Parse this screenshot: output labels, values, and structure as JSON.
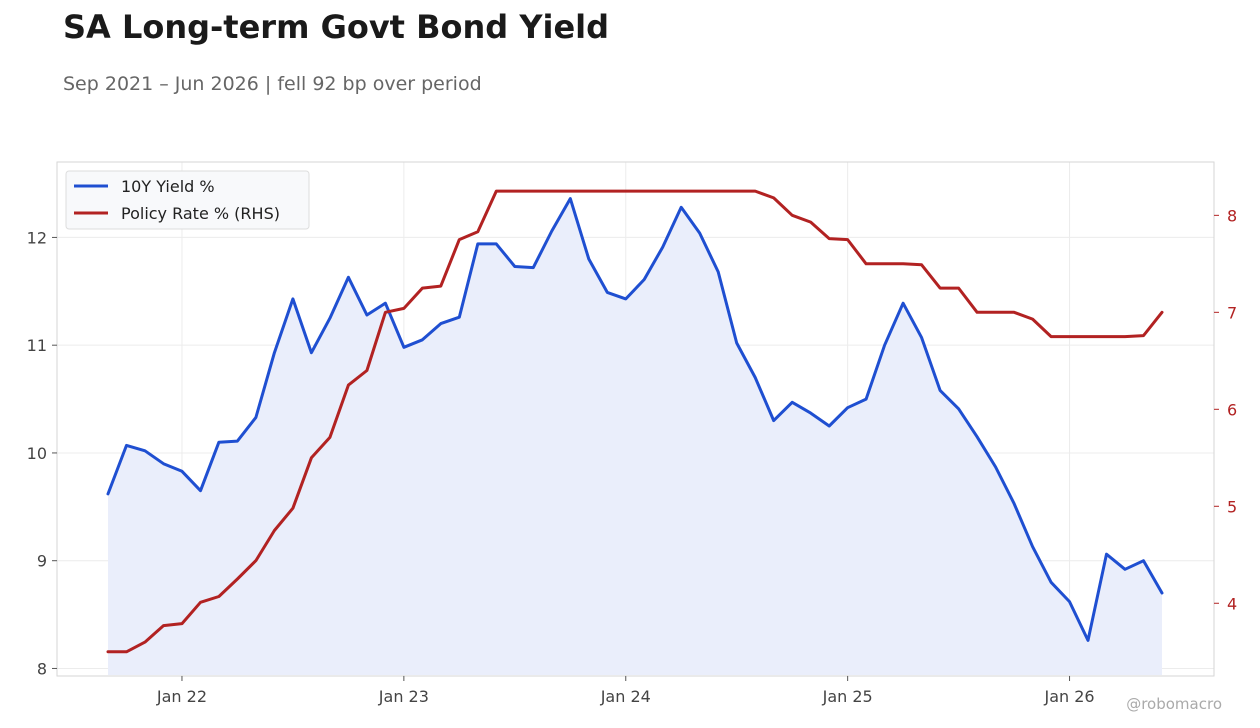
{
  "header": {
    "title": "SA Long-term Govt Bond Yield",
    "subtitle": "Sep 2021 – Jun 2026 | fell 92 bp over period"
  },
  "watermark": "@robomacro",
  "chart_data": {
    "type": "line",
    "title": "SA Long-term Govt Bond Yield",
    "subtitle": "Sep 2021 – Jun 2026 | fell 92 bp over period",
    "x_start": "2021-09",
    "x_end": "2026-06",
    "x_tick_labels": [
      "Jan 22",
      "Jan 23",
      "Jan 24",
      "Jan 25",
      "Jan 26"
    ],
    "x_ticks": [
      "2022-01",
      "2023-01",
      "2024-01",
      "2025-01",
      "2026-01"
    ],
    "grid": true,
    "legend_position": "top-left",
    "y_left": {
      "ticks": [
        8,
        9,
        10,
        11,
        12
      ],
      "range": [
        7.93,
        12.7
      ]
    },
    "y_right": {
      "ticks": [
        4,
        5,
        6,
        7,
        8
      ],
      "range": [
        3.25,
        8.55
      ],
      "color": "#b22222"
    },
    "series": [
      {
        "name": "10Y Yield %",
        "axis": "left",
        "color": "#1f4fd1",
        "fill": "#eaeefb",
        "x": [
          "2021-09",
          "2021-10",
          "2021-11",
          "2021-12",
          "2022-01",
          "2022-02",
          "2022-03",
          "2022-04",
          "2022-05",
          "2022-06",
          "2022-07",
          "2022-08",
          "2022-09",
          "2022-10",
          "2022-11",
          "2022-12",
          "2023-01",
          "2023-02",
          "2023-03",
          "2023-04",
          "2023-05",
          "2023-06",
          "2023-07",
          "2023-08",
          "2023-09",
          "2023-10",
          "2023-11",
          "2023-12",
          "2024-01",
          "2024-02",
          "2024-03",
          "2024-04",
          "2024-05",
          "2024-06",
          "2024-07",
          "2024-08",
          "2024-09",
          "2024-10",
          "2024-11",
          "2024-12",
          "2025-01",
          "2025-02",
          "2025-03",
          "2025-04",
          "2025-05",
          "2025-06",
          "2025-07",
          "2025-08",
          "2025-09",
          "2025-10",
          "2025-11",
          "2025-12",
          "2026-01",
          "2026-02",
          "2026-03",
          "2026-04",
          "2026-05",
          "2026-06"
        ],
        "values": [
          9.62,
          10.07,
          10.02,
          9.9,
          9.83,
          9.65,
          10.1,
          10.11,
          10.33,
          10.93,
          11.43,
          10.93,
          11.25,
          11.63,
          11.28,
          11.39,
          10.98,
          11.05,
          11.2,
          11.26,
          11.94,
          11.94,
          11.73,
          11.72,
          12.06,
          12.36,
          11.8,
          11.49,
          11.43,
          11.61,
          11.91,
          12.28,
          12.04,
          11.68,
          11.02,
          10.7,
          10.3,
          10.47,
          10.37,
          10.25,
          10.42,
          10.5,
          11.0,
          11.39,
          11.07,
          10.58,
          10.41,
          10.15,
          9.87,
          9.53,
          9.13,
          8.8,
          8.62,
          8.26,
          9.06,
          8.92,
          9.0,
          8.7
        ]
      },
      {
        "name": "Policy Rate % (RHS)",
        "axis": "right",
        "color": "#b22222",
        "x": [
          "2021-09",
          "2021-10",
          "2021-11",
          "2021-12",
          "2022-01",
          "2022-02",
          "2022-03",
          "2022-04",
          "2022-05",
          "2022-06",
          "2022-07",
          "2022-08",
          "2022-09",
          "2022-10",
          "2022-11",
          "2022-12",
          "2023-01",
          "2023-02",
          "2023-03",
          "2023-04",
          "2023-05",
          "2023-06",
          "2023-07",
          "2023-08",
          "2023-09",
          "2023-10",
          "2023-11",
          "2023-12",
          "2024-01",
          "2024-02",
          "2024-03",
          "2024-04",
          "2024-05",
          "2024-06",
          "2024-07",
          "2024-08",
          "2024-09",
          "2024-10",
          "2024-11",
          "2024-12",
          "2025-01",
          "2025-02",
          "2025-03",
          "2025-04",
          "2025-05",
          "2025-06",
          "2025-07",
          "2025-08",
          "2025-09",
          "2025-10",
          "2025-11",
          "2025-12",
          "2026-01",
          "2026-02",
          "2026-03",
          "2026-04",
          "2026-05",
          "2026-06"
        ],
        "values": [
          3.5,
          3.5,
          3.6,
          3.77,
          3.79,
          4.01,
          4.07,
          4.25,
          4.44,
          4.75,
          4.98,
          5.5,
          5.71,
          6.25,
          6.4,
          7.0,
          7.04,
          7.25,
          7.27,
          7.75,
          7.83,
          8.25,
          8.25,
          8.25,
          8.25,
          8.25,
          8.25,
          8.25,
          8.25,
          8.25,
          8.25,
          8.25,
          8.25,
          8.25,
          8.25,
          8.25,
          8.18,
          8.0,
          7.93,
          7.76,
          7.75,
          7.5,
          7.5,
          7.5,
          7.49,
          7.25,
          7.25,
          7.0,
          7.0,
          7.0,
          6.93,
          6.75,
          6.75,
          6.75,
          6.75,
          6.75,
          6.76,
          7.0
        ]
      }
    ]
  }
}
